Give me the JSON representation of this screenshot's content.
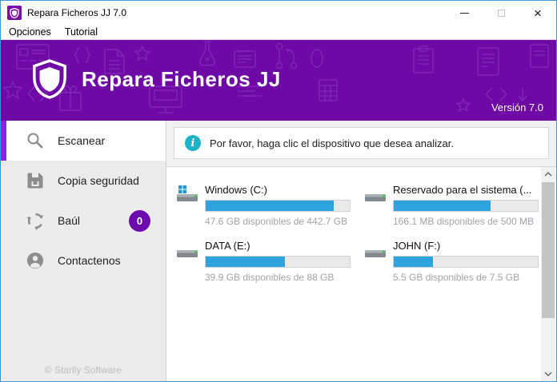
{
  "window": {
    "title": "Repara Ficheros JJ 7.0",
    "controls": {
      "close_glyph": "×"
    }
  },
  "menu": {
    "items": [
      {
        "label": "Opciones"
      },
      {
        "label": "Tutorial"
      }
    ]
  },
  "header": {
    "app_name": "Repara Ficheros JJ",
    "version": "Versión 7.0"
  },
  "sidebar": {
    "items": [
      {
        "label": "Escanear",
        "icon": "search-icon",
        "selected": true
      },
      {
        "label": "Copia seguridad",
        "icon": "save-icon",
        "selected": false
      },
      {
        "label": "Baúl",
        "icon": "recycle-icon",
        "badge": "0",
        "selected": false
      },
      {
        "label": "Contactenos",
        "icon": "person-icon",
        "selected": false
      }
    ],
    "footer": "© Starlly Software"
  },
  "main": {
    "info_message": "Por favor, haga clic el dispositivo que desea analizar.",
    "drives": [
      {
        "name": "Windows (C:)",
        "caption": "47.6 GB disponibles de 442.7 GB",
        "used_percent": 89,
        "icon": "system-drive-icon"
      },
      {
        "name": "Reservado para el sistema (...",
        "caption": "166.1 MB disponibles de 500 MB",
        "used_percent": 67,
        "icon": "drive-icon"
      },
      {
        "name": "DATA (E:)",
        "caption": "39.9 GB disponibles de 88 GB",
        "used_percent": 55,
        "icon": "drive-icon"
      },
      {
        "name": "JOHN (F:)",
        "caption": "5.5 GB disponibles de 7.5 GB",
        "used_percent": 27,
        "icon": "drive-icon"
      }
    ]
  },
  "colors": {
    "header_purple": "#6e09a6",
    "accent_purple": "#8a22e8",
    "badge_purple": "#6c0caf",
    "progress_blue": "#2ea3de",
    "info_teal": "#1cb2c8",
    "window_border_blue": "#3d97dd"
  }
}
